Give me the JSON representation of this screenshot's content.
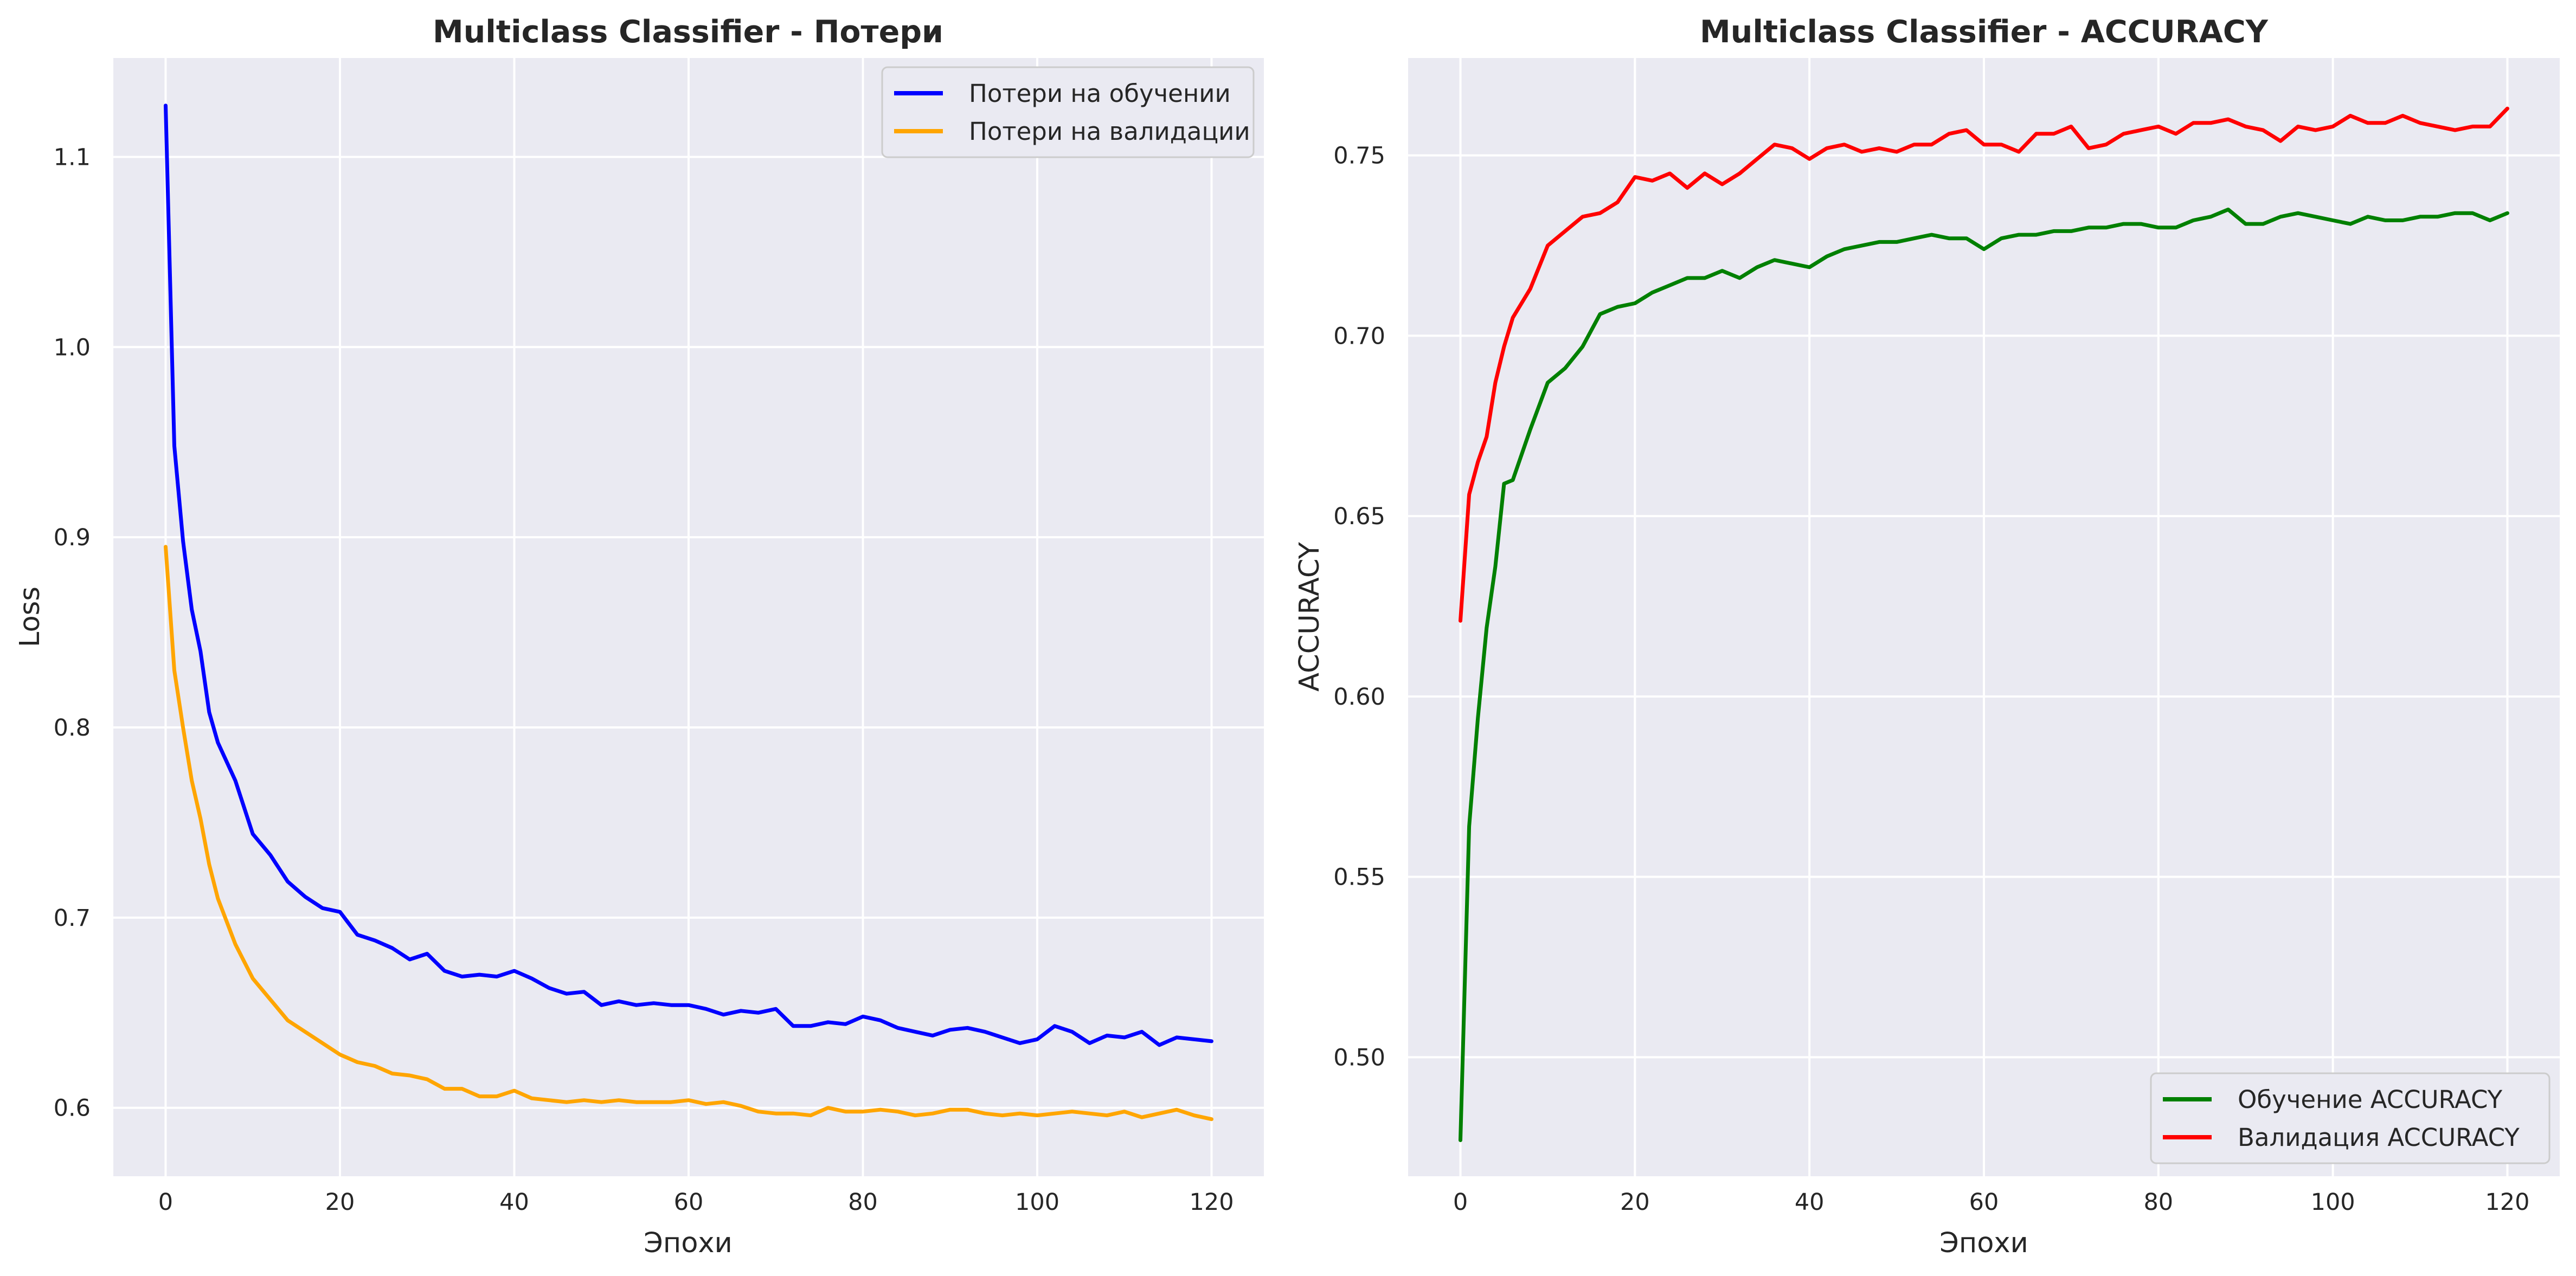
{
  "chart_data": [
    {
      "type": "line",
      "title": "Multiclass Classifier - Потери",
      "xlabel": "Эпохи",
      "ylabel": "Loss",
      "xlim": [
        -6,
        126
      ],
      "ylim": [
        0.564,
        1.152
      ],
      "xticks": [
        0,
        20,
        40,
        60,
        80,
        100,
        120
      ],
      "yticks": [
        0.6,
        0.7,
        0.8,
        0.9,
        1.0,
        1.1
      ],
      "ytick_decimals": 1,
      "grid": true,
      "legend_position": "top-right",
      "series": [
        {
          "name": "Потери на обучении",
          "color": "#0000ff",
          "x": [
            0,
            1,
            2,
            3,
            4,
            5,
            6,
            8,
            10,
            12,
            14,
            16,
            18,
            20,
            22,
            24,
            26,
            28,
            30,
            32,
            34,
            36,
            38,
            40,
            42,
            44,
            46,
            48,
            50,
            52,
            54,
            56,
            58,
            60,
            62,
            64,
            66,
            68,
            70,
            72,
            74,
            76,
            78,
            80,
            82,
            84,
            86,
            88,
            90,
            92,
            94,
            96,
            98,
            100,
            102,
            104,
            106,
            108,
            110,
            112,
            114,
            116,
            118,
            120
          ],
          "y": [
            1.127,
            0.948,
            0.898,
            0.862,
            0.84,
            0.808,
            0.792,
            0.772,
            0.744,
            0.733,
            0.719,
            0.711,
            0.705,
            0.703,
            0.691,
            0.688,
            0.684,
            0.678,
            0.681,
            0.672,
            0.669,
            0.67,
            0.669,
            0.672,
            0.668,
            0.663,
            0.66,
            0.661,
            0.654,
            0.656,
            0.654,
            0.655,
            0.654,
            0.654,
            0.652,
            0.649,
            0.651,
            0.65,
            0.652,
            0.643,
            0.643,
            0.645,
            0.644,
            0.648,
            0.646,
            0.642,
            0.64,
            0.638,
            0.641,
            0.642,
            0.64,
            0.637,
            0.634,
            0.636,
            0.643,
            0.64,
            0.634,
            0.638,
            0.637,
            0.64,
            0.633,
            0.637,
            0.636,
            0.635
          ]
        },
        {
          "name": "Потери на валидации",
          "color": "#ffa500",
          "x": [
            0,
            1,
            2,
            3,
            4,
            5,
            6,
            8,
            10,
            12,
            14,
            16,
            18,
            20,
            22,
            24,
            26,
            28,
            30,
            32,
            34,
            36,
            38,
            40,
            42,
            44,
            46,
            48,
            50,
            52,
            54,
            56,
            58,
            60,
            62,
            64,
            66,
            68,
            70,
            72,
            74,
            76,
            78,
            80,
            82,
            84,
            86,
            88,
            90,
            92,
            94,
            96,
            98,
            100,
            102,
            104,
            106,
            108,
            110,
            112,
            114,
            116,
            118,
            120
          ],
          "y": [
            0.895,
            0.83,
            0.8,
            0.772,
            0.752,
            0.728,
            0.71,
            0.686,
            0.668,
            0.657,
            0.646,
            0.64,
            0.634,
            0.628,
            0.624,
            0.622,
            0.618,
            0.617,
            0.615,
            0.61,
            0.61,
            0.606,
            0.606,
            0.609,
            0.605,
            0.604,
            0.603,
            0.604,
            0.603,
            0.604,
            0.603,
            0.603,
            0.603,
            0.604,
            0.602,
            0.603,
            0.601,
            0.598,
            0.597,
            0.597,
            0.596,
            0.6,
            0.598,
            0.598,
            0.599,
            0.598,
            0.596,
            0.597,
            0.599,
            0.599,
            0.597,
            0.596,
            0.597,
            0.596,
            0.597,
            0.598,
            0.597,
            0.596,
            0.598,
            0.595,
            0.597,
            0.599,
            0.596,
            0.594
          ]
        }
      ]
    },
    {
      "type": "line",
      "title": "Multiclass Classifier - ACCURACY",
      "xlabel": "Эпохи",
      "ylabel": "ACCURACY",
      "xlim": [
        -6,
        126
      ],
      "ylim": [
        0.467,
        0.777
      ],
      "xticks": [
        0,
        20,
        40,
        60,
        80,
        100,
        120
      ],
      "yticks": [
        0.5,
        0.55,
        0.6,
        0.65,
        0.7,
        0.75
      ],
      "ytick_decimals": 2,
      "grid": true,
      "legend_position": "bottom-right",
      "series": [
        {
          "name": "Обучение ACCURACY",
          "color": "#008000",
          "x": [
            0,
            1,
            2,
            3,
            4,
            5,
            6,
            8,
            10,
            12,
            14,
            16,
            18,
            20,
            22,
            24,
            26,
            28,
            30,
            32,
            34,
            36,
            38,
            40,
            42,
            44,
            46,
            48,
            50,
            52,
            54,
            56,
            58,
            60,
            62,
            64,
            66,
            68,
            70,
            72,
            74,
            76,
            78,
            80,
            82,
            84,
            86,
            88,
            90,
            92,
            94,
            96,
            98,
            100,
            102,
            104,
            106,
            108,
            110,
            112,
            114,
            116,
            118,
            120
          ],
          "y": [
            0.477,
            0.564,
            0.594,
            0.619,
            0.636,
            0.659,
            0.66,
            0.674,
            0.687,
            0.691,
            0.697,
            0.706,
            0.708,
            0.709,
            0.712,
            0.714,
            0.716,
            0.716,
            0.718,
            0.716,
            0.719,
            0.721,
            0.72,
            0.719,
            0.722,
            0.724,
            0.725,
            0.726,
            0.726,
            0.727,
            0.728,
            0.727,
            0.727,
            0.724,
            0.727,
            0.728,
            0.728,
            0.729,
            0.729,
            0.73,
            0.73,
            0.731,
            0.731,
            0.73,
            0.73,
            0.732,
            0.733,
            0.735,
            0.731,
            0.731,
            0.733,
            0.734,
            0.733,
            0.732,
            0.731,
            0.733,
            0.732,
            0.732,
            0.733,
            0.733,
            0.734,
            0.734,
            0.732,
            0.734
          ]
        },
        {
          "name": "Валидация ACCURACY",
          "color": "#ff0000",
          "x": [
            0,
            1,
            2,
            3,
            4,
            5,
            6,
            8,
            10,
            12,
            14,
            16,
            18,
            20,
            22,
            24,
            26,
            28,
            30,
            32,
            34,
            36,
            38,
            40,
            42,
            44,
            46,
            48,
            50,
            52,
            54,
            56,
            58,
            60,
            62,
            64,
            66,
            68,
            70,
            72,
            74,
            76,
            78,
            80,
            82,
            84,
            86,
            88,
            90,
            92,
            94,
            96,
            98,
            100,
            102,
            104,
            106,
            108,
            110,
            112,
            114,
            116,
            118,
            120
          ],
          "y": [
            0.621,
            0.656,
            0.665,
            0.672,
            0.687,
            0.697,
            0.705,
            0.713,
            0.725,
            0.729,
            0.733,
            0.734,
            0.737,
            0.744,
            0.743,
            0.745,
            0.741,
            0.745,
            0.742,
            0.745,
            0.749,
            0.753,
            0.752,
            0.749,
            0.752,
            0.753,
            0.751,
            0.752,
            0.751,
            0.753,
            0.753,
            0.756,
            0.757,
            0.753,
            0.753,
            0.751,
            0.756,
            0.756,
            0.758,
            0.752,
            0.753,
            0.756,
            0.757,
            0.758,
            0.756,
            0.759,
            0.759,
            0.76,
            0.758,
            0.757,
            0.754,
            0.758,
            0.757,
            0.758,
            0.761,
            0.759,
            0.759,
            0.761,
            0.759,
            0.758,
            0.757,
            0.758,
            0.758,
            0.763
          ]
        }
      ]
    }
  ]
}
